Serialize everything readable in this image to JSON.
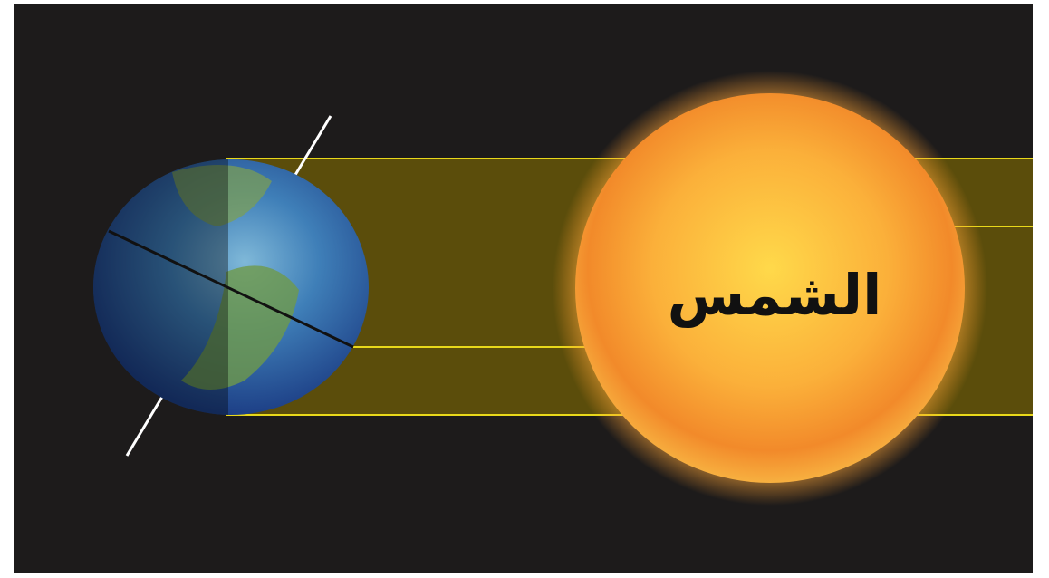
{
  "sun": {
    "label": "الشمس"
  }
}
